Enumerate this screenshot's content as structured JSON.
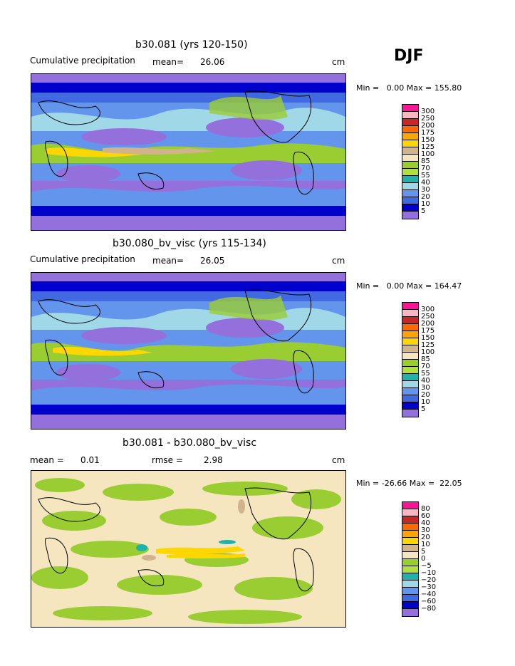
{
  "season": "DJF",
  "panels": [
    {
      "title": "b30.081 (yrs 120-150)",
      "left_label": "Cumulative precipitation",
      "stat_label": "mean=",
      "stat_value": "26.06",
      "units": "cm",
      "min_label": "Min =",
      "min_value": "0.00",
      "max_label": "Max =",
      "max_value": "155.80",
      "colorbar_labels": [
        "300",
        "250",
        "200",
        "175",
        "150",
        "125",
        "100",
        "85",
        "70",
        "55",
        "40",
        "30",
        "20",
        "10",
        "5"
      ],
      "colorbar_colors": [
        "#ff1493",
        "#ffb6c1",
        "#c62828",
        "#ff6a00",
        "#ffa500",
        "#ffd700",
        "#d2b48c",
        "#f5e6c0",
        "#9acd32",
        "#b0e040",
        "#20b2aa",
        "#a0d8e8",
        "#6495ed",
        "#4169e1",
        "#0000cd",
        "#9370db"
      ]
    },
    {
      "title": "b30.080_bv_visc (yrs 115-134)",
      "left_label": "Cumulative precipitation",
      "stat_label": "mean=",
      "stat_value": "26.05",
      "units": "cm",
      "min_label": "Min =",
      "min_value": "0.00",
      "max_label": "Max =",
      "max_value": "164.47",
      "colorbar_labels": [
        "300",
        "250",
        "200",
        "175",
        "150",
        "125",
        "100",
        "85",
        "70",
        "55",
        "40",
        "30",
        "20",
        "10",
        "5"
      ],
      "colorbar_colors": [
        "#ff1493",
        "#ffb6c1",
        "#c62828",
        "#ff6a00",
        "#ffa500",
        "#ffd700",
        "#d2b48c",
        "#f5e6c0",
        "#9acd32",
        "#b0e040",
        "#20b2aa",
        "#a0d8e8",
        "#6495ed",
        "#4169e1",
        "#0000cd",
        "#9370db"
      ]
    },
    {
      "title": "b30.081 - b30.080_bv_visc",
      "left_label": "mean =",
      "left_value": "0.01",
      "stat_label": "rmse =",
      "stat_value": "2.98",
      "units": "cm",
      "min_label": "Min =",
      "min_value": "-26.66",
      "max_label": "Max =",
      "max_value": "22.05",
      "colorbar_labels": [
        "80",
        "60",
        "40",
        "30",
        "20",
        "10",
        "5",
        "0",
        "−5",
        "−10",
        "−20",
        "−30",
        "−40",
        "−60",
        "−80"
      ],
      "colorbar_colors": [
        "#ff1493",
        "#ffb6c1",
        "#c62828",
        "#ff6a00",
        "#ffa500",
        "#ffd700",
        "#d2b48c",
        "#f5e6c0",
        "#9acd32",
        "#b0e040",
        "#20b2aa",
        "#a0d8e8",
        "#6495ed",
        "#4169e1",
        "#0000cd",
        "#9370db"
      ]
    }
  ]
}
